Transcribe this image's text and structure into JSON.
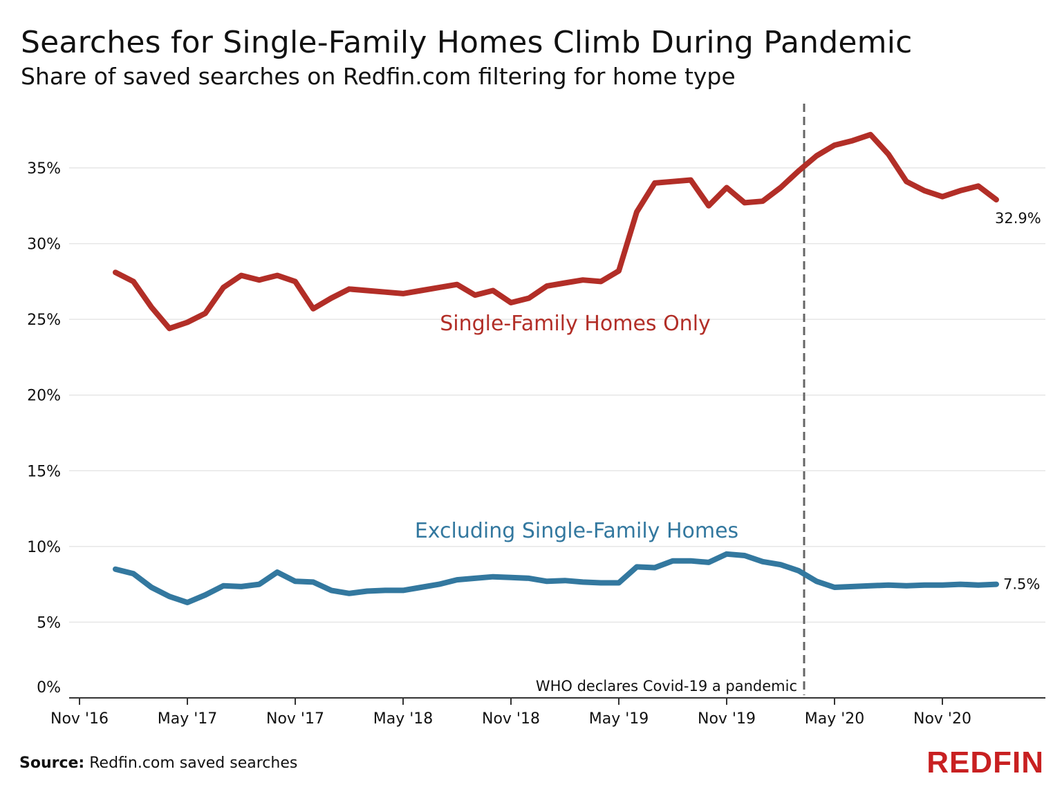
{
  "title": "Searches for Single-Family Homes Climb During Pandemic",
  "subtitle": "Share of saved searches on Redfin.com filtering for home type",
  "source_label": "Source:",
  "source_text": "Redfin.com saved searches",
  "logo_text": "REDFIN",
  "colors": {
    "sfh": "#b22e27",
    "excl": "#33789f",
    "logo": "#c82021",
    "grid": "#e6e6e6",
    "axis": "#333333",
    "marker": "#666666"
  },
  "chart_data": {
    "type": "line",
    "ylim": [
      0,
      38
    ],
    "y_ticks": [
      0,
      5,
      10,
      15,
      20,
      25,
      30,
      35
    ],
    "y_tick_labels": [
      "0%",
      "5%",
      "10%",
      "15%",
      "20%",
      "25%",
      "30%",
      "35%"
    ],
    "x_ticks": [
      "2016-11",
      "2017-05",
      "2017-11",
      "2018-05",
      "2018-11",
      "2019-05",
      "2019-11",
      "2020-05",
      "2020-11"
    ],
    "x_tick_labels": [
      "Nov '16",
      "May '17",
      "Nov '17",
      "May '18",
      "Nov '18",
      "May '19",
      "Nov '19",
      "May '20",
      "Nov '20"
    ],
    "grid": "horizontal",
    "x": [
      "2017-01",
      "2017-02",
      "2017-03",
      "2017-04",
      "2017-05",
      "2017-06",
      "2017-07",
      "2017-08",
      "2017-09",
      "2017-10",
      "2017-11",
      "2017-12",
      "2018-01",
      "2018-02",
      "2018-03",
      "2018-04",
      "2018-05",
      "2018-06",
      "2018-07",
      "2018-08",
      "2018-09",
      "2018-10",
      "2018-11",
      "2018-12",
      "2019-01",
      "2019-02",
      "2019-03",
      "2019-04",
      "2019-05",
      "2019-06",
      "2019-07",
      "2019-08",
      "2019-09",
      "2019-10",
      "2019-11",
      "2019-12",
      "2020-01",
      "2020-02",
      "2020-03",
      "2020-04",
      "2020-05",
      "2020-06",
      "2020-07",
      "2020-08",
      "2020-09",
      "2020-10",
      "2020-11",
      "2020-12",
      "2021-01",
      "2021-02"
    ],
    "series": [
      {
        "name": "Single-Family Homes Only",
        "end_label": "32.9%",
        "values": [
          28.1,
          27.5,
          25.8,
          24.4,
          24.8,
          25.4,
          27.1,
          27.9,
          27.6,
          27.9,
          27.5,
          25.7,
          26.4,
          27.0,
          26.9,
          26.8,
          26.7,
          26.9,
          27.1,
          27.3,
          26.6,
          26.9,
          26.1,
          26.4,
          27.2,
          27.4,
          27.6,
          27.5,
          28.2,
          32.1,
          34.0,
          34.1,
          34.2,
          32.5,
          33.7,
          32.7,
          32.8,
          33.7,
          34.8,
          35.8,
          36.5,
          36.8,
          37.2,
          35.9,
          34.1,
          33.5,
          33.1,
          33.5,
          33.8,
          32.9
        ]
      },
      {
        "name": "Excluding Single-Family Homes",
        "end_label": "7.5%",
        "values": [
          8.5,
          8.2,
          7.3,
          6.7,
          6.3,
          6.8,
          7.4,
          7.35,
          7.5,
          8.3,
          7.7,
          7.65,
          7.1,
          6.9,
          7.05,
          7.1,
          7.1,
          7.3,
          7.5,
          7.8,
          7.9,
          8.0,
          7.95,
          7.9,
          7.7,
          7.75,
          7.65,
          7.6,
          7.6,
          8.65,
          8.6,
          9.05,
          9.05,
          8.95,
          9.5,
          9.4,
          9.0,
          8.8,
          8.4,
          7.7,
          7.3,
          7.35,
          7.4,
          7.45,
          7.4,
          7.45,
          7.45,
          7.5,
          7.45,
          7.5
        ]
      }
    ],
    "annotations": [
      {
        "x": "2020-03",
        "text": "WHO declares Covid-19 a pandemic"
      }
    ]
  }
}
